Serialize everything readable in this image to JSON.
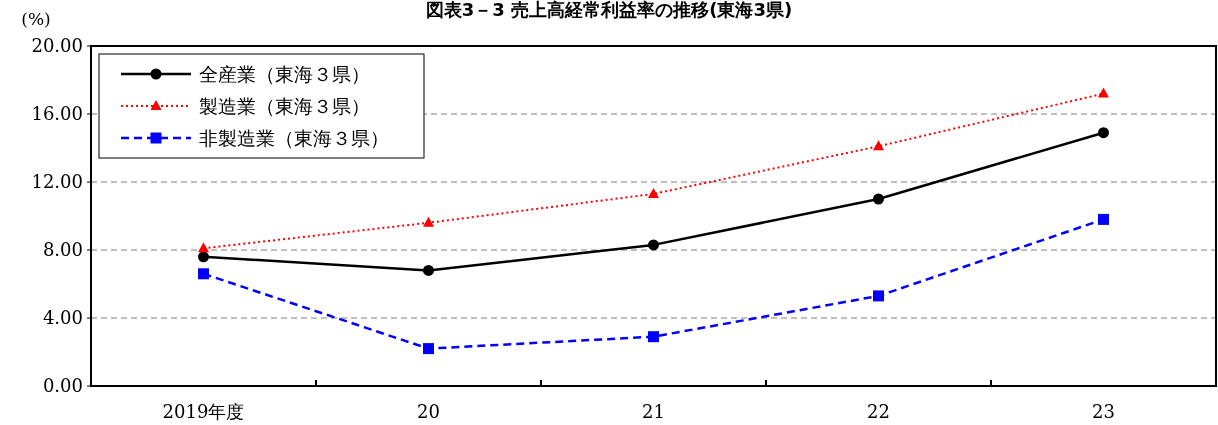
{
  "chart_data": {
    "type": "line",
    "title": "図表3－3 売上高経常利益率の推移(東海3県)",
    "ylabel": "(%)",
    "categories": [
      "2019年度",
      "20",
      "21",
      "22",
      "23"
    ],
    "series": [
      {
        "name": "全産業（東海３県）",
        "color": "#000000",
        "marker": "circle",
        "line_style": "solid",
        "values": [
          7.6,
          6.8,
          8.3,
          11.0,
          14.9
        ]
      },
      {
        "name": "製造業（東海３県）",
        "color": "#ff0000",
        "marker": "triangle",
        "line_style": "dotted",
        "values": [
          8.1,
          9.6,
          11.3,
          14.1,
          17.2
        ]
      },
      {
        "name": "非製造業（東海３県）",
        "color": "#0000ff",
        "marker": "square",
        "line_style": "dashed",
        "values": [
          6.6,
          2.2,
          2.9,
          5.3,
          9.8
        ]
      }
    ],
    "ylim": [
      0,
      20
    ],
    "yticks": [
      {
        "value": 0,
        "label": "0.00"
      },
      {
        "value": 4,
        "label": "4.00"
      },
      {
        "value": 8,
        "label": "8.00"
      },
      {
        "value": 12,
        "label": "12.00"
      },
      {
        "value": 16,
        "label": "16.00"
      },
      {
        "value": 20,
        "label": "20.00"
      }
    ],
    "grid": "y",
    "legend": "top left"
  }
}
